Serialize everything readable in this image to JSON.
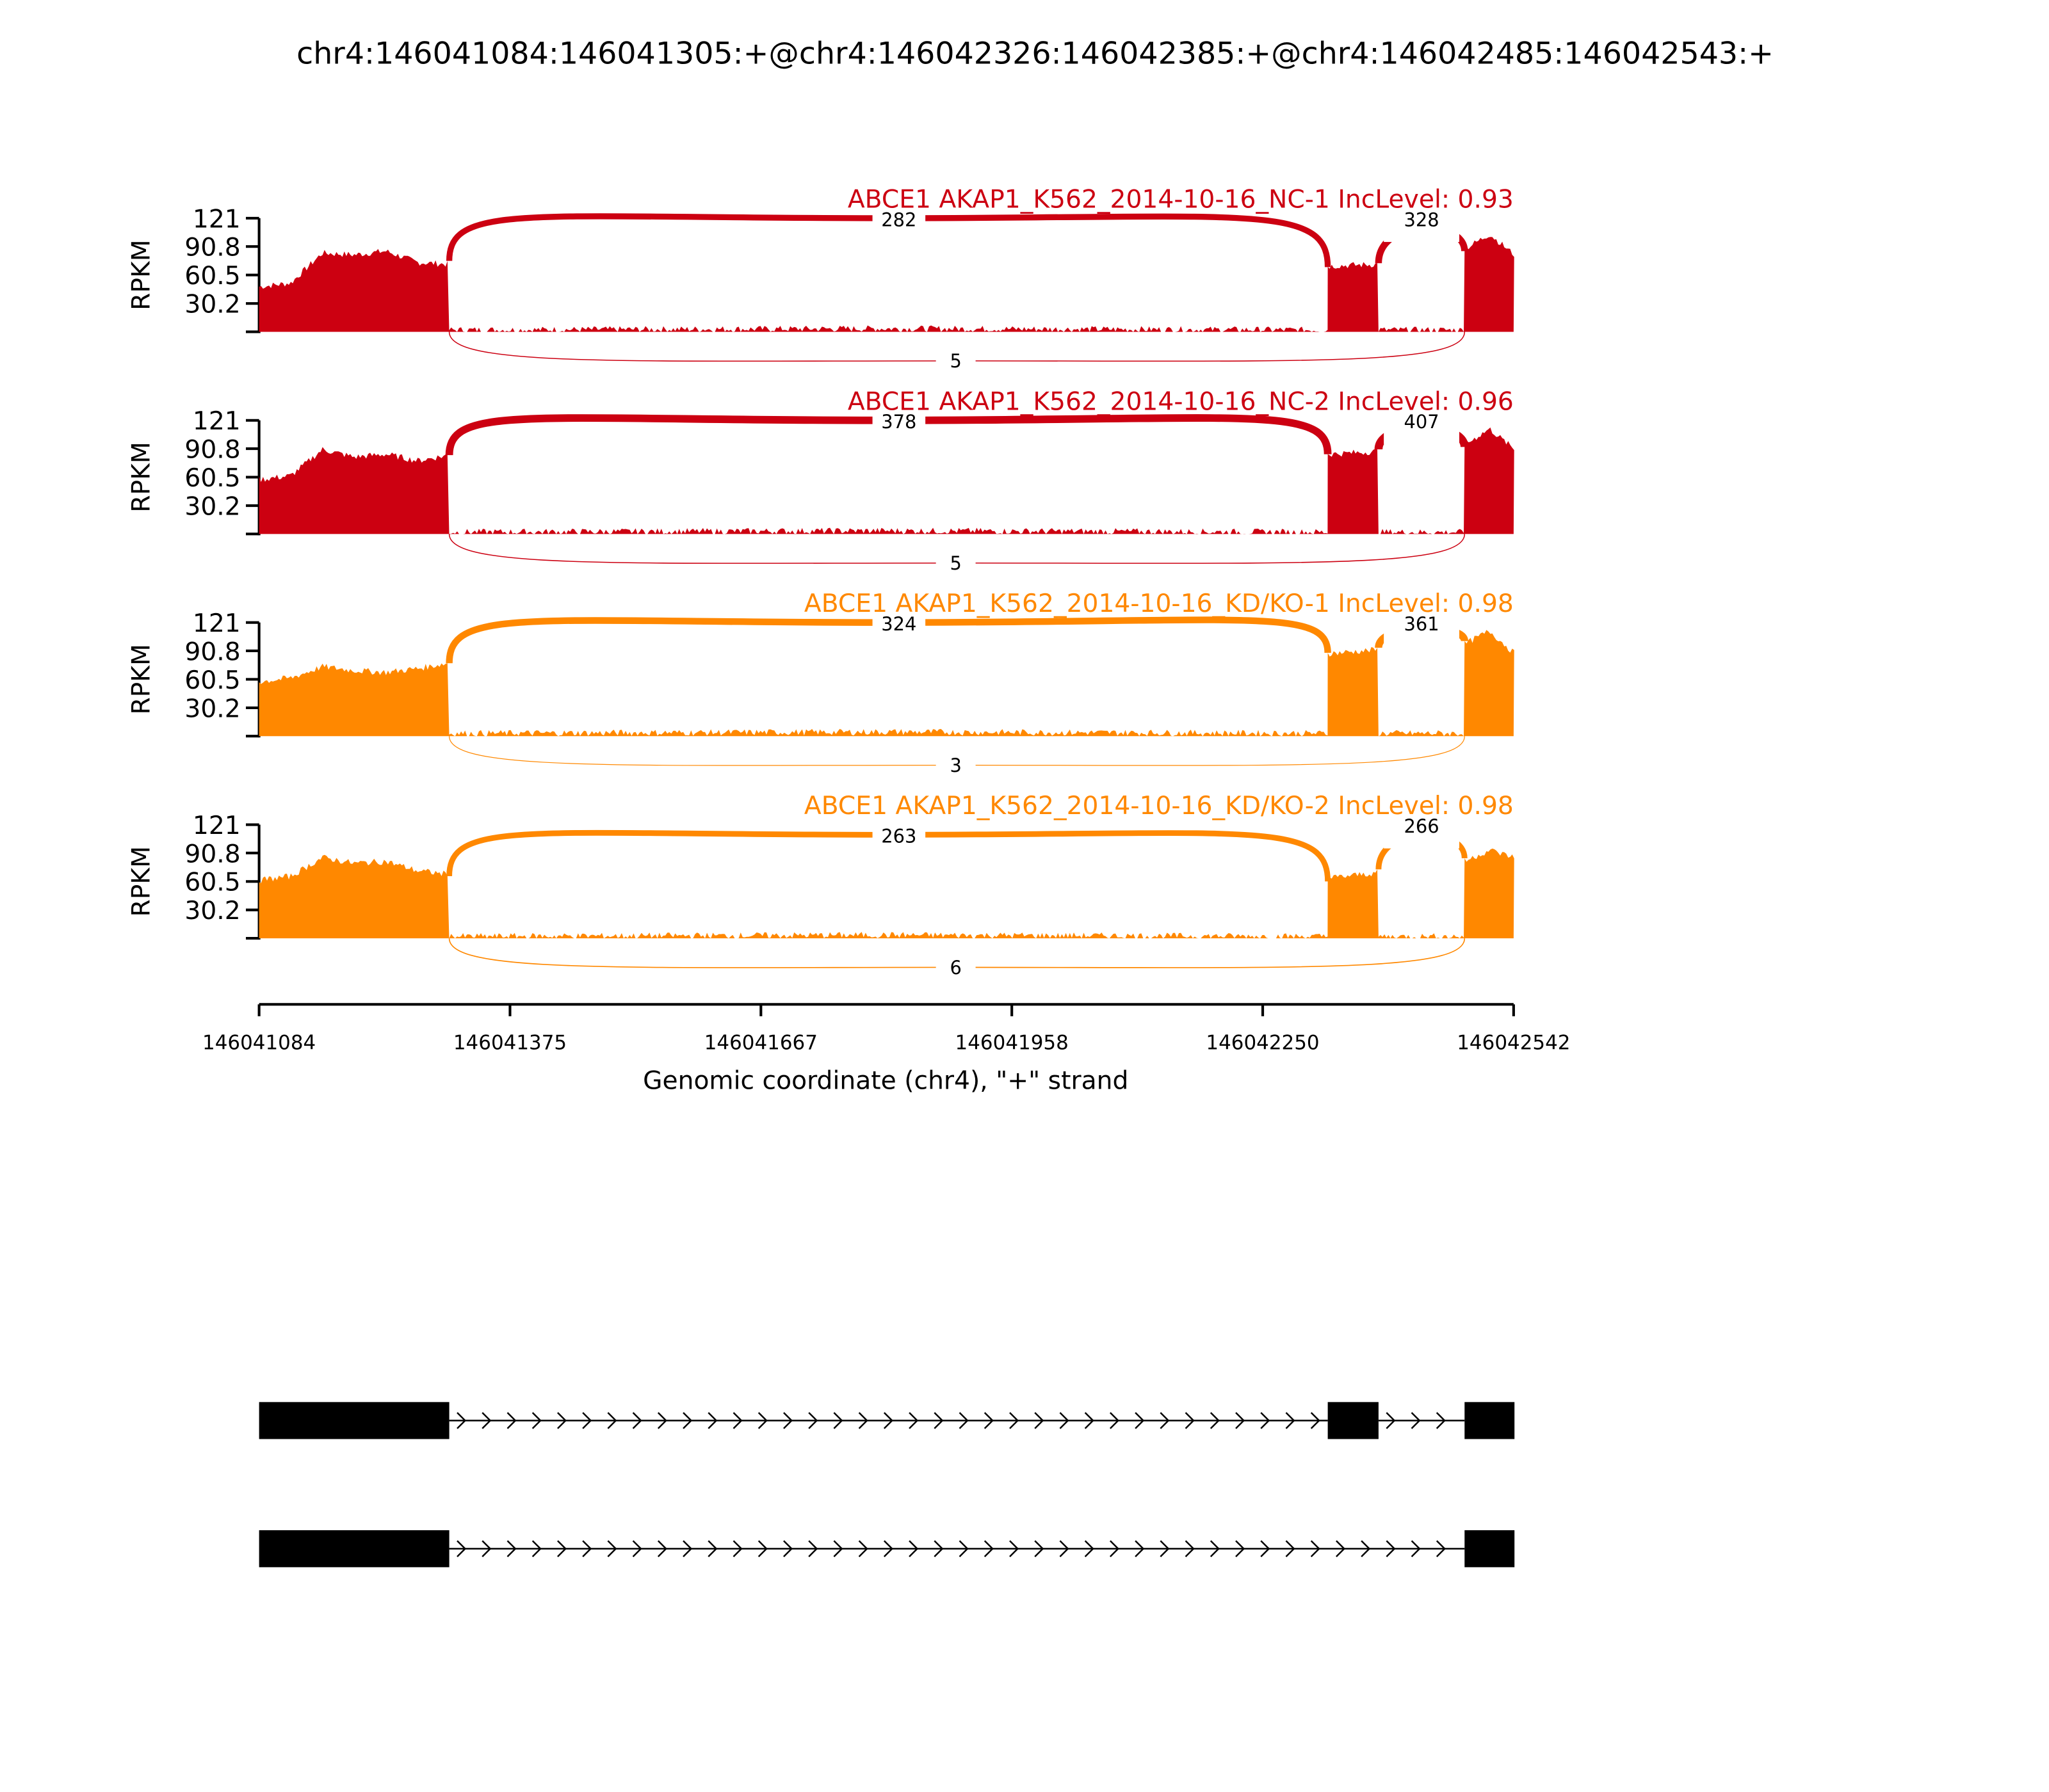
{
  "chart_data": {
    "type": "area",
    "title": "chr4:146041084:146041305:+@chr4:146042326:146042385:+@chr4:146042485:146042543:+",
    "xlabel": "Genomic coordinate (chr4), \"+\" strand",
    "ylabel": "RPKM",
    "xlim": [
      146041084,
      146042542
    ],
    "ylim": [
      0,
      121
    ],
    "x_ticks": [
      "146041084",
      "146041375",
      "146041667",
      "146041958",
      "146042250",
      "146042542"
    ],
    "y_ticks": [
      "30.2",
      "60.5",
      "90.8",
      "121"
    ],
    "grid": false,
    "exons": [
      [
        146041084,
        146041305
      ],
      [
        146042326,
        146042385
      ],
      [
        146042485,
        146042543
      ]
    ],
    "panels": [
      {
        "label": "ABCE1 AKAP1_K562_2014-10-16_NC-1 IncLevel: 0.93",
        "color": "#cc0011",
        "junctions": {
          "exon1_exon2": "282",
          "exon2_exon3": "328",
          "exon1_exon3": "5"
        },
        "coverage": {
          "exon1": [
            48,
            52,
            84,
            82,
            86,
            74,
            72
          ],
          "intron": 2,
          "exon2": [
            70,
            72
          ],
          "exon3": [
            88,
            104,
            82
          ]
        }
      },
      {
        "label": "ABCE1 AKAP1_K562_2014-10-16_NC-2 IncLevel: 0.96",
        "color": "#cc0011",
        "junctions": {
          "exon1_exon2": "378",
          "exon2_exon3": "407",
          "exon1_exon3": "5"
        },
        "coverage": {
          "exon1": [
            58,
            62,
            90,
            82,
            85,
            78,
            84
          ],
          "intron": 2,
          "exon2": [
            85,
            88
          ],
          "exon3": [
            95,
            112,
            90
          ]
        }
      },
      {
        "label": "ABCE1 AKAP1_K562_2014-10-16_KD/KO-1 IncLevel: 0.98",
        "color": "#ff8800",
        "junctions": {
          "exon1_exon2": "324",
          "exon1_exon3": "3",
          "exon2_exon3": "361"
        },
        "coverage": {
          "exon1": [
            58,
            62,
            74,
            70,
            68,
            72,
            78
          ],
          "intron": 3,
          "exon2": [
            88,
            92
          ],
          "exon3": [
            98,
            112,
            88
          ]
        }
      },
      {
        "label": "ABCE1 AKAP1_K562_2014-10-16_KD/KO-2 IncLevel: 0.98",
        "color": "#ff8800",
        "junctions": {
          "exon1_exon2": "263",
          "exon2_exon3": "266",
          "exon1_exon3": "6"
        },
        "coverage": {
          "exon1": [
            62,
            66,
            86,
            80,
            82,
            72,
            68
          ],
          "intron": 2,
          "exon2": [
            64,
            70
          ],
          "exon3": [
            82,
            94,
            86
          ]
        }
      }
    ],
    "transcripts": [
      {
        "exons": [
          [
            146041084,
            146041305
          ],
          [
            146042326,
            146042385
          ],
          [
            146042485,
            146042543
          ]
        ]
      },
      {
        "exons": [
          [
            146041084,
            146041305
          ],
          [
            146042485,
            146042543
          ]
        ]
      }
    ]
  }
}
